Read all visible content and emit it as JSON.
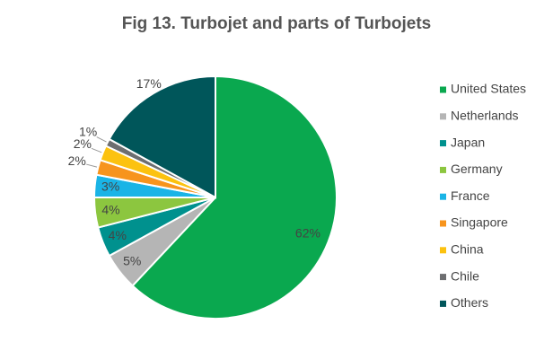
{
  "chart_data": {
    "type": "pie",
    "title": "Fig 13. Turbojet and parts of Turbojets",
    "categories": [
      "United States",
      "Netherlands",
      "Japan",
      "Germany",
      "France",
      "Singapore",
      "China",
      "Chile",
      "Others"
    ],
    "values": [
      62,
      5,
      4,
      4,
      3,
      2,
      2,
      1,
      17
    ],
    "value_labels": [
      "62%",
      "5%",
      "4%",
      "4%",
      "3%",
      "2%",
      "2%",
      "1%",
      "17%"
    ],
    "colors": [
      "#0aa84f",
      "#b5b5b5",
      "#00918e",
      "#8cc63f",
      "#1ab4e6",
      "#f7941d",
      "#fcc20f",
      "#6d6e70",
      "#00565a"
    ],
    "legend": "right"
  }
}
